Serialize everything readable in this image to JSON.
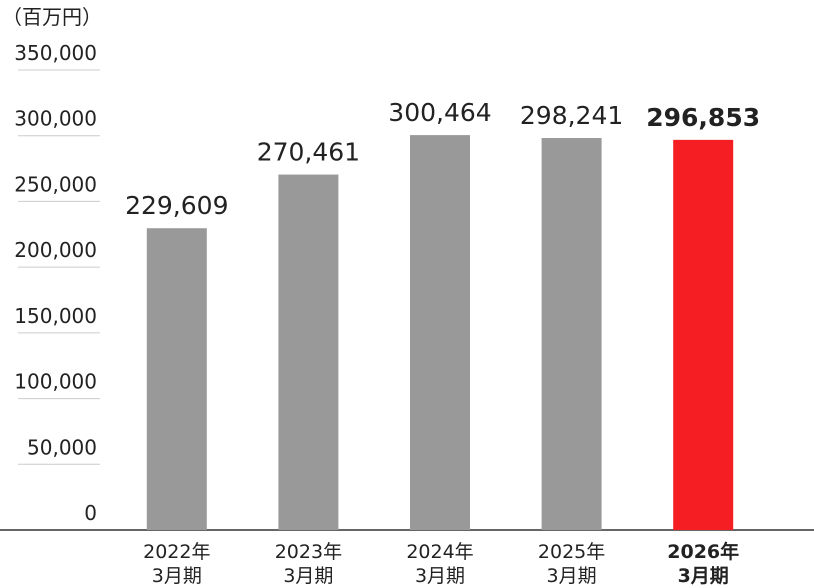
{
  "chart_data": {
    "type": "bar",
    "y_label": "（百万円）",
    "categories": [
      [
        "2022年",
        "3月期"
      ],
      [
        "2023年",
        "3月期"
      ],
      [
        "2024年",
        "3月期"
      ],
      [
        "2025年",
        "3月期"
      ],
      [
        "2026年",
        "3月期"
      ]
    ],
    "values": [
      229609,
      270461,
      300464,
      298241,
      296853
    ],
    "value_labels": [
      "229,609",
      "270,461",
      "300,464",
      "298,241",
      "296,853"
    ],
    "colors": [
      "#999999",
      "#999999",
      "#999999",
      "#999999",
      "#f41e23"
    ],
    "highlight_index": 4,
    "ylim": [
      0,
      350000
    ],
    "yticks": [
      0,
      {
        "value": 50000,
        "label": "50,000"
      },
      {
        "value": 100000,
        "label": "100,000"
      },
      {
        "value": 150000,
        "label": "150,000"
      },
      {
        "value": 200000,
        "label": "200,000"
      },
      {
        "value": 250000,
        "label": "250,000"
      },
      {
        "value": 300000,
        "label": "300,000"
      },
      {
        "value": 350000,
        "label": "350,000"
      }
    ],
    "grid": true
  }
}
